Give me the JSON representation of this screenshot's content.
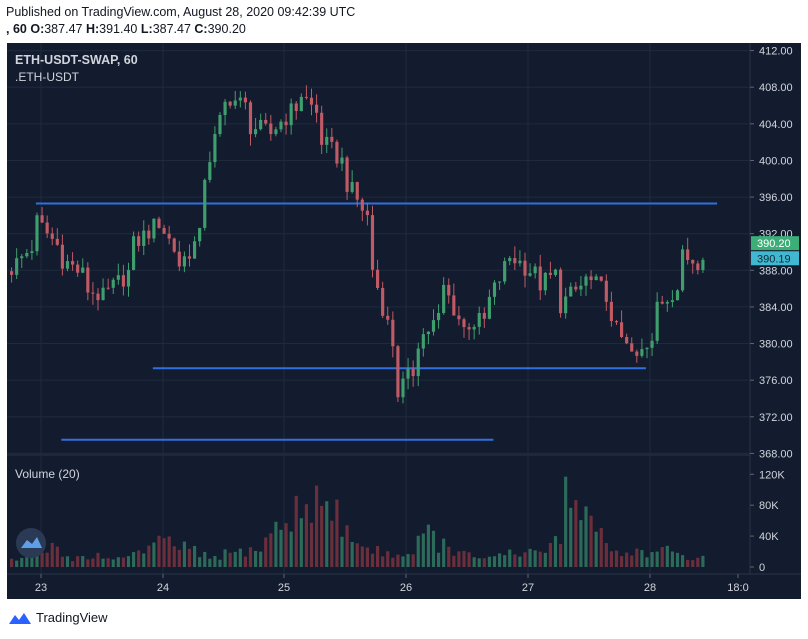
{
  "header": {
    "published_line": "Published on TradingView.com, August 28, 2020 09:42:39 UTC",
    "ohlc_prefix": ", 60",
    "o_label": "O:",
    "o_value": "387.47",
    "h_label": "H:",
    "h_value": "391.40",
    "l_label": "L:",
    "l_value": "387.47",
    "c_label": "C:",
    "c_value": "390.20"
  },
  "pane": {
    "symbol": "ETH-USDT-SWAP, 60",
    "symbol_sub": ".ETH-USDT",
    "volume_label": "Volume (20)"
  },
  "footer": {
    "brand": "TradingView"
  },
  "colors": {
    "background": "#131c2e",
    "up": "#3f9e6e",
    "down": "#c05a64",
    "up_volume": "#2c6b5a",
    "down_volume": "#6b2f3c",
    "grid": "#1f2a3d",
    "axis_text": "#d1d4dc",
    "hline": "#2f6fe0",
    "last_price": "#3cae77",
    "price_tag2": "#42b7d1"
  },
  "icons": {
    "chart_logo": "tradingview-cloud-icon"
  },
  "chart_data": [
    {
      "type": "candlestick",
      "title": "ETH-USDT-SWAP, 60",
      "x_ticks": [
        "23",
        "24",
        "25",
        "26",
        "27",
        "28",
        "18:0"
      ],
      "y_ticks": [
        "412.00",
        "408.00",
        "404.00",
        "400.00",
        "396.00",
        "392.00",
        "388.00",
        "384.00",
        "380.00",
        "376.00",
        "372.00",
        "368.00"
      ],
      "ylim": [
        367.5,
        412.5
      ],
      "price_tags": [
        "390.20",
        "390.19"
      ],
      "horizontal_lines": [
        {
          "price": 395.3,
          "x_start": "22 23:00",
          "x_end": "28 13:00"
        },
        {
          "price": 377.3,
          "x_start": "23 22:00",
          "x_end": "27 23:00"
        },
        {
          "price": 369.5,
          "x_start": "23 04:00",
          "x_end": "26 17:00"
        }
      ],
      "ohlc_anchor_points": [
        [
          389.5,
          388.2
        ],
        [
          391.0,
          393.5
        ],
        [
          390.5,
          389.5
        ],
        [
          387.5,
          386.2
        ],
        [
          384.8,
          385.5
        ],
        [
          388.0,
          390.5
        ],
        [
          392.8,
          394.2
        ],
        [
          389.5,
          388.5
        ],
        [
          392.0,
          397.5
        ],
        [
          406.5,
          407.2
        ],
        [
          405.5,
          403.8
        ],
        [
          402.8,
          403.5
        ],
        [
          406.0,
          407.8
        ],
        [
          404.5,
          402.2
        ],
        [
          399.5,
          397.8
        ],
        [
          393.5,
          389.5
        ],
        [
          380.0,
          374.0
        ],
        [
          377.5,
          380.2
        ],
        [
          383.0,
          386.8
        ],
        [
          381.5,
          382.2
        ],
        [
          382.5,
          384.5
        ],
        [
          390.0,
          389.5
        ],
        [
          387.5,
          386.2
        ],
        [
          387.8,
          384.2
        ],
        [
          386.5,
          387.2
        ],
        [
          385.5,
          382.0
        ],
        [
          380.5,
          378.0
        ],
        [
          380.0,
          384.2
        ],
        [
          386.2,
          389.5
        ],
        [
          389.0,
          390.2
        ]
      ]
    },
    {
      "type": "bar",
      "title": "Volume (20)",
      "y_ticks": [
        "120K",
        "80K",
        "40K",
        "0"
      ],
      "ylim": [
        0,
        132000
      ],
      "volume_anchor_points": [
        [
          10000,
          12000,
          18000,
          20000,
          28000,
          15000,
          12000,
          14000,
          16000,
          9000,
          11000,
          14000
        ],
        [
          18000,
          20000,
          25000,
          35000,
          32000,
          28000,
          22000,
          15000,
          12000,
          14000,
          18000,
          20000
        ],
        [
          22000,
          25000,
          40000,
          55000,
          62000,
          75000,
          85000,
          92000,
          80000,
          70000,
          50000,
          40000
        ],
        [
          25000,
          22000,
          20000,
          18000,
          16000,
          25000,
          38000,
          45000,
          30000,
          22000,
          18000,
          15000
        ],
        [
          14000,
          12000,
          15000,
          18000,
          16000,
          20000,
          22000,
          25000,
          35000,
          120000,
          85000,
          70000
        ],
        [
          60000,
          30000,
          20000,
          18000,
          22000,
          20000,
          18000,
          22000,
          16000,
          15000,
          14000,
          12000
        ]
      ]
    }
  ]
}
